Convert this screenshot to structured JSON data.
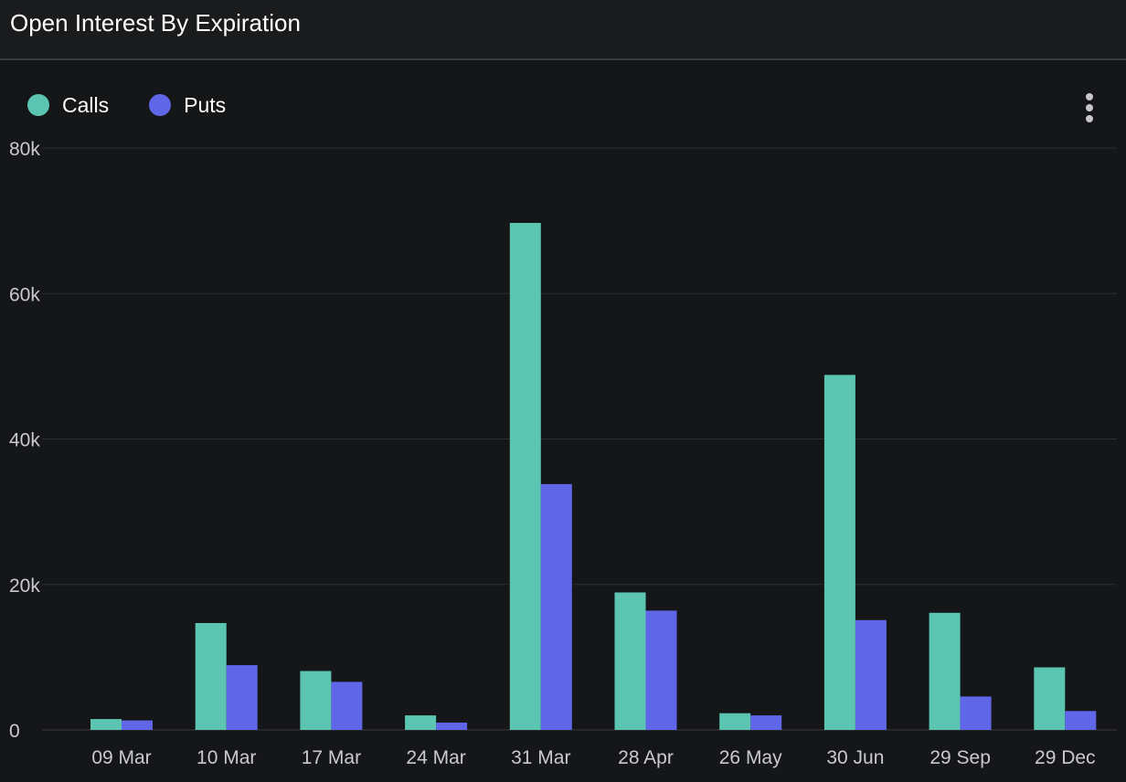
{
  "header": {
    "title": "Open Interest By Expiration"
  },
  "legend": {
    "items": [
      {
        "label": "Calls",
        "color": "#5cc5b2"
      },
      {
        "label": "Puts",
        "color": "#5f67e8"
      }
    ]
  },
  "menu": {
    "icon": "more-vertical-icon"
  },
  "colors": {
    "background": "#151618",
    "header_background": "#1a1b1d",
    "gridline": "#2c2d30",
    "calls": "#5cc5b2",
    "puts": "#5f67e8"
  },
  "chart_data": {
    "type": "bar",
    "title": "Open Interest By Expiration",
    "xlabel": "",
    "ylabel": "",
    "categories": [
      "09 Mar",
      "10 Mar",
      "17 Mar",
      "24 Mar",
      "31 Mar",
      "28 Apr",
      "26 May",
      "30 Jun",
      "29 Sep",
      "29 Dec"
    ],
    "series": [
      {
        "name": "Calls",
        "color": "#5cc5b2",
        "values": [
          1500,
          14700,
          8100,
          2000,
          69700,
          18900,
          2300,
          48800,
          16100,
          8600
        ]
      },
      {
        "name": "Puts",
        "color": "#5f67e8",
        "values": [
          1300,
          8900,
          6600,
          1000,
          33800,
          16400,
          2000,
          15100,
          4600,
          2600
        ]
      }
    ],
    "ylim": [
      0,
      80000
    ],
    "yticks": [
      0,
      20000,
      40000,
      60000,
      80000
    ],
    "ytick_labels": [
      "0",
      "20k",
      "40k",
      "60k",
      "80k"
    ],
    "grid": true,
    "legend_position": "top-left"
  }
}
